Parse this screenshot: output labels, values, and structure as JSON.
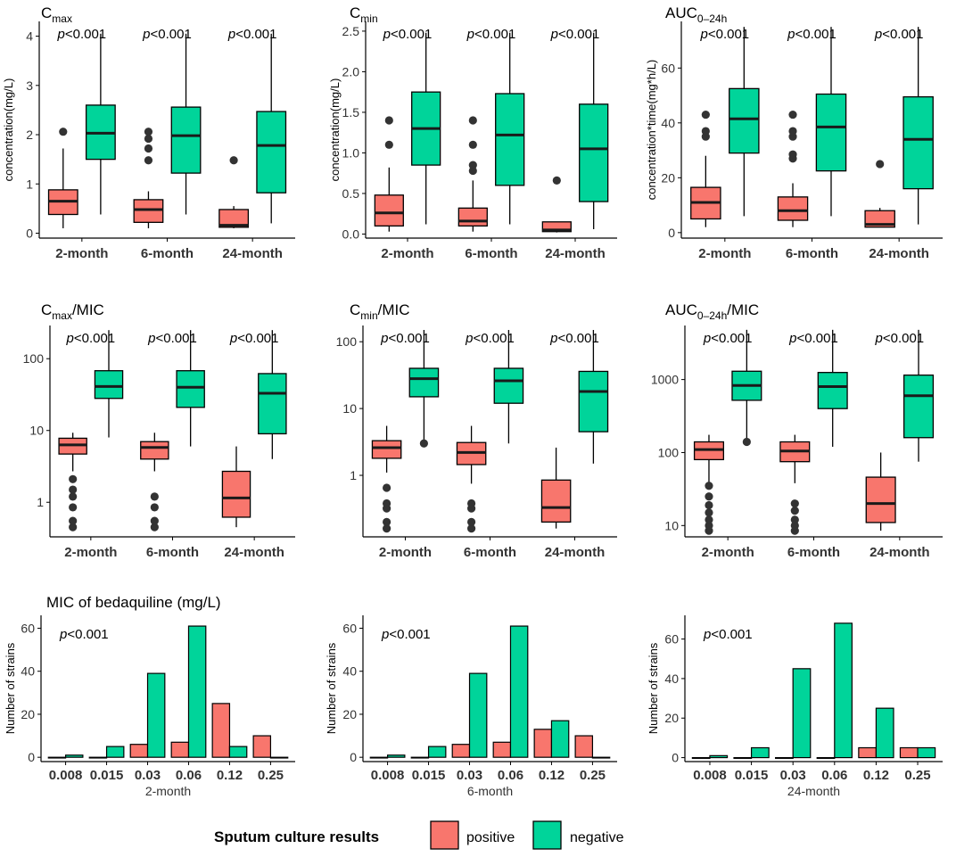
{
  "colors": {
    "positive": "#F8766D",
    "negative": "#00D49A"
  },
  "legend": {
    "title": "Sputum culture results",
    "items": [
      "positive",
      "negative"
    ]
  },
  "chart_data": [
    {
      "id": "cmax",
      "type": "box",
      "title_main": "C",
      "title_sub": "max",
      "title_tail": "",
      "ylabel": "concentration(mg/L)",
      "yscale": "linear",
      "ylim": [
        -0.1,
        4.3
      ],
      "yticks": [
        0,
        1,
        2,
        3,
        4
      ],
      "ytick_labels": [
        "0",
        "1",
        "2",
        "3",
        "4"
      ],
      "categories": [
        "2-month",
        "6-month",
        "24-month"
      ],
      "pvalues": [
        "p<0.001",
        "p<0.001",
        "p<0.001"
      ],
      "groups": [
        {
          "positive": {
            "min": 0.1,
            "q1": 0.38,
            "median": 0.65,
            "q3": 0.88,
            "max": 1.72,
            "outliers": [
              2.06
            ]
          },
          "negative": {
            "min": 0.38,
            "q1": 1.5,
            "median": 2.03,
            "q3": 2.6,
            "max": 4.05,
            "outliers": []
          }
        },
        {
          "positive": {
            "min": 0.1,
            "q1": 0.22,
            "median": 0.48,
            "q3": 0.68,
            "max": 0.85,
            "outliers": [
              1.48,
              1.72,
              1.92,
              2.06
            ]
          },
          "negative": {
            "min": 0.38,
            "q1": 1.22,
            "median": 1.98,
            "q3": 2.56,
            "max": 4.05,
            "outliers": []
          }
        },
        {
          "positive": {
            "min": 0.1,
            "q1": 0.12,
            "median": 0.16,
            "q3": 0.48,
            "max": 0.55,
            "outliers": [
              1.48
            ]
          },
          "negative": {
            "min": 0.2,
            "q1": 0.82,
            "median": 1.78,
            "q3": 2.47,
            "max": 4.05,
            "outliers": []
          }
        }
      ]
    },
    {
      "id": "cmin",
      "type": "box",
      "title_main": "C",
      "title_sub": "min",
      "title_tail": "",
      "ylabel": "concentration(mg/L)",
      "yscale": "linear",
      "ylim": [
        -0.05,
        2.62
      ],
      "yticks": [
        0,
        0.5,
        1,
        1.5,
        2,
        2.5
      ],
      "ytick_labels": [
        "0.0",
        "0.5",
        "1.0",
        "1.5",
        "2.0",
        "2.5"
      ],
      "categories": [
        "2-month",
        "6-month",
        "24-month"
      ],
      "pvalues": [
        "p<0.001",
        "p<0.001",
        "p<0.001"
      ],
      "groups": [
        {
          "positive": {
            "min": 0.03,
            "q1": 0.1,
            "median": 0.26,
            "q3": 0.48,
            "max": 0.82,
            "outliers": [
              1.1,
              1.4
            ]
          },
          "negative": {
            "min": 0.12,
            "q1": 0.85,
            "median": 1.3,
            "q3": 1.75,
            "max": 2.48,
            "outliers": []
          }
        },
        {
          "positive": {
            "min": 0.03,
            "q1": 0.1,
            "median": 0.16,
            "q3": 0.32,
            "max": 0.66,
            "outliers": [
              0.78,
              0.85,
              1.1,
              1.4
            ]
          },
          "negative": {
            "min": 0.12,
            "q1": 0.6,
            "median": 1.22,
            "q3": 1.73,
            "max": 2.48,
            "outliers": []
          }
        },
        {
          "positive": {
            "min": 0.02,
            "q1": 0.03,
            "median": 0.05,
            "q3": 0.15,
            "max": 0.15,
            "outliers": [
              0.66
            ]
          },
          "negative": {
            "min": 0.06,
            "q1": 0.4,
            "median": 1.05,
            "q3": 1.6,
            "max": 2.48,
            "outliers": []
          }
        }
      ]
    },
    {
      "id": "auc",
      "type": "box",
      "title_main": "AUC",
      "title_sub": "0–24h",
      "title_tail": "",
      "ylabel": "concentration*time(mg*h/L)",
      "yscale": "linear",
      "ylim": [
        -2,
        77
      ],
      "yticks": [
        0,
        20,
        40,
        60
      ],
      "ytick_labels": [
        "0",
        "20",
        "40",
        "60"
      ],
      "categories": [
        "2-month",
        "6-month",
        "24-month"
      ],
      "pvalues": [
        "p<0.001",
        "p<0.001",
        "p<0.001"
      ],
      "groups": [
        {
          "positive": {
            "min": 2,
            "q1": 5,
            "median": 11,
            "q3": 16.5,
            "max": 28,
            "outliers": [
              35,
              37,
              43
            ]
          },
          "negative": {
            "min": 6,
            "q1": 29,
            "median": 41.5,
            "q3": 52.5,
            "max": 75,
            "outliers": []
          }
        },
        {
          "positive": {
            "min": 2,
            "q1": 4.5,
            "median": 8,
            "q3": 13,
            "max": 18,
            "outliers": [
              27,
              28.5,
              35,
              37,
              43
            ]
          },
          "negative": {
            "min": 6,
            "q1": 22.5,
            "median": 38.5,
            "q3": 50.5,
            "max": 75,
            "outliers": []
          }
        },
        {
          "positive": {
            "min": 2,
            "q1": 2,
            "median": 3,
            "q3": 8,
            "max": 9,
            "outliers": [
              25
            ]
          },
          "negative": {
            "min": 3,
            "q1": 16,
            "median": 34,
            "q3": 49.5,
            "max": 75,
            "outliers": []
          }
        }
      ]
    },
    {
      "id": "cmax-mic",
      "type": "box",
      "title_main": "C",
      "title_sub": "max",
      "title_tail": "/MIC",
      "ylabel": "",
      "yscale": "log",
      "ylim": [
        0.33,
        290
      ],
      "yticks": [
        1,
        10,
        100
      ],
      "ytick_labels": [
        "1",
        "10",
        "100"
      ],
      "categories": [
        "2-month",
        "6-month",
        "24-month"
      ],
      "pvalues": [
        "p<0.001",
        "p<0.001",
        "p<0.001"
      ],
      "groups": [
        {
          "positive": {
            "min": 2.7,
            "q1": 4.7,
            "median": 6.3,
            "q3": 7.8,
            "max": 9.3,
            "outliers": [
              0.45,
              0.55,
              0.85,
              1.2,
              1.5,
              2.1
            ]
          },
          "negative": {
            "min": 8,
            "q1": 28,
            "median": 41,
            "q3": 68,
            "max": 250,
            "outliers": []
          }
        },
        {
          "positive": {
            "min": 2.7,
            "q1": 4,
            "median": 5.8,
            "q3": 7,
            "max": 9.3,
            "outliers": [
              0.45,
              0.55,
              0.85,
              1.2
            ]
          },
          "negative": {
            "min": 6,
            "q1": 21,
            "median": 40,
            "q3": 68,
            "max": 250,
            "outliers": []
          }
        },
        {
          "positive": {
            "min": 0.45,
            "q1": 0.62,
            "median": 1.15,
            "q3": 2.7,
            "max": 6,
            "outliers": []
          },
          "negative": {
            "min": 4,
            "q1": 9,
            "median": 33,
            "q3": 62,
            "max": 250,
            "outliers": []
          }
        }
      ]
    },
    {
      "id": "cmin-mic",
      "type": "box",
      "title_main": "C",
      "title_sub": "min",
      "title_tail": "/MIC",
      "ylabel": "",
      "yscale": "log",
      "ylim": [
        0.12,
        175
      ],
      "yticks": [
        1,
        10,
        100
      ],
      "ytick_labels": [
        "1",
        "10",
        "100"
      ],
      "categories": [
        "2-month",
        "6-month",
        "24-month"
      ],
      "pvalues": [
        "p<0.001",
        "p<0.001",
        "p<0.001"
      ],
      "groups": [
        {
          "positive": {
            "min": 1.1,
            "q1": 1.8,
            "median": 2.6,
            "q3": 3.3,
            "max": 5.5,
            "outliers": [
              0.16,
              0.2,
              0.32,
              0.38,
              0.65
            ]
          },
          "negative": {
            "min": 3,
            "q1": 15,
            "median": 28,
            "q3": 40,
            "max": 150,
            "outliers": [
              3
            ]
          }
        },
        {
          "positive": {
            "min": 0.75,
            "q1": 1.45,
            "median": 2.2,
            "q3": 3.1,
            "max": 5.5,
            "outliers": [
              0.16,
              0.2,
              0.32,
              0.38
            ]
          },
          "negative": {
            "min": 3,
            "q1": 12,
            "median": 26,
            "q3": 40,
            "max": 150,
            "outliers": []
          }
        },
        {
          "positive": {
            "min": 0.16,
            "q1": 0.2,
            "median": 0.33,
            "q3": 0.85,
            "max": 2.6,
            "outliers": []
          },
          "negative": {
            "min": 1.5,
            "q1": 4.5,
            "median": 18,
            "q3": 36,
            "max": 150,
            "outliers": []
          }
        }
      ]
    },
    {
      "id": "auc-mic",
      "type": "box",
      "title_main": "AUC",
      "title_sub": "0–24h",
      "title_tail": "/MIC",
      "ylabel": "",
      "yscale": "log",
      "ylim": [
        7,
        5500
      ],
      "yticks": [
        10,
        100,
        1000
      ],
      "ytick_labels": [
        "10",
        "100",
        "1000"
      ],
      "categories": [
        "2-month",
        "6-month",
        "24-month"
      ],
      "pvalues": [
        "p<0.001",
        "p<0.001",
        "p<0.001"
      ],
      "groups": [
        {
          "positive": {
            "min": 38,
            "q1": 80,
            "median": 110,
            "q3": 140,
            "max": 175,
            "outliers": [
              8.5,
              10,
              12,
              15,
              19,
              25,
              35
            ]
          },
          "negative": {
            "min": 140,
            "q1": 520,
            "median": 830,
            "q3": 1300,
            "max": 4800,
            "outliers": [
              140
            ]
          }
        },
        {
          "positive": {
            "min": 38,
            "q1": 75,
            "median": 105,
            "q3": 140,
            "max": 175,
            "outliers": [
              8.5,
              10,
              12,
              16,
              20
            ]
          },
          "negative": {
            "min": 120,
            "q1": 400,
            "median": 800,
            "q3": 1250,
            "max": 4800,
            "outliers": []
          }
        },
        {
          "positive": {
            "min": 8.5,
            "q1": 11,
            "median": 20,
            "q3": 46,
            "max": 100,
            "outliers": []
          },
          "negative": {
            "min": 75,
            "q1": 160,
            "median": 600,
            "q3": 1150,
            "max": 4800,
            "outliers": []
          }
        }
      ]
    },
    {
      "id": "mic-2m",
      "type": "bar",
      "title": "MIC of bedaquiline (mg/L)",
      "ylabel": "Number of strains",
      "xlabel": "2-month",
      "ylim": [
        -2,
        66
      ],
      "yticks": [
        0,
        20,
        40,
        60
      ],
      "ytick_labels": [
        "0",
        "20",
        "40",
        "60"
      ],
      "pvalue": "p<0.001",
      "categories": [
        "0.008",
        "0.015",
        "0.03",
        "0.06",
        "0.12",
        "0.25"
      ],
      "series": [
        {
          "name": "positive",
          "values": [
            0,
            0,
            6,
            7,
            25,
            10
          ]
        },
        {
          "name": "negative",
          "values": [
            1,
            5,
            39,
            61,
            5,
            0
          ]
        }
      ]
    },
    {
      "id": "mic-6m",
      "type": "bar",
      "title": "",
      "ylabel": "Number of strains",
      "xlabel": "6-month",
      "ylim": [
        -2,
        66
      ],
      "yticks": [
        0,
        20,
        40,
        60
      ],
      "ytick_labels": [
        "0",
        "20",
        "40",
        "60"
      ],
      "pvalue": "p<0.001",
      "categories": [
        "0.008",
        "0.015",
        "0.03",
        "0.06",
        "0.12",
        "0.25"
      ],
      "series": [
        {
          "name": "positive",
          "values": [
            0,
            0,
            6,
            7,
            13,
            10
          ]
        },
        {
          "name": "negative",
          "values": [
            1,
            5,
            39,
            61,
            17,
            0
          ]
        }
      ]
    },
    {
      "id": "mic-24m",
      "type": "bar",
      "title": "",
      "ylabel": "Number of strains",
      "xlabel": "24-month",
      "ylim": [
        -2,
        72
      ],
      "yticks": [
        0,
        20,
        40,
        60
      ],
      "ytick_labels": [
        "0",
        "20",
        "40",
        "60"
      ],
      "pvalue": "p<0.001",
      "categories": [
        "0.008",
        "0.015",
        "0.03",
        "0.06",
        "0.12",
        "0.25"
      ],
      "series": [
        {
          "name": "positive",
          "values": [
            0,
            0,
            0,
            0,
            5,
            5
          ]
        },
        {
          "name": "negative",
          "values": [
            1,
            5,
            45,
            68,
            25,
            5
          ]
        }
      ]
    }
  ]
}
